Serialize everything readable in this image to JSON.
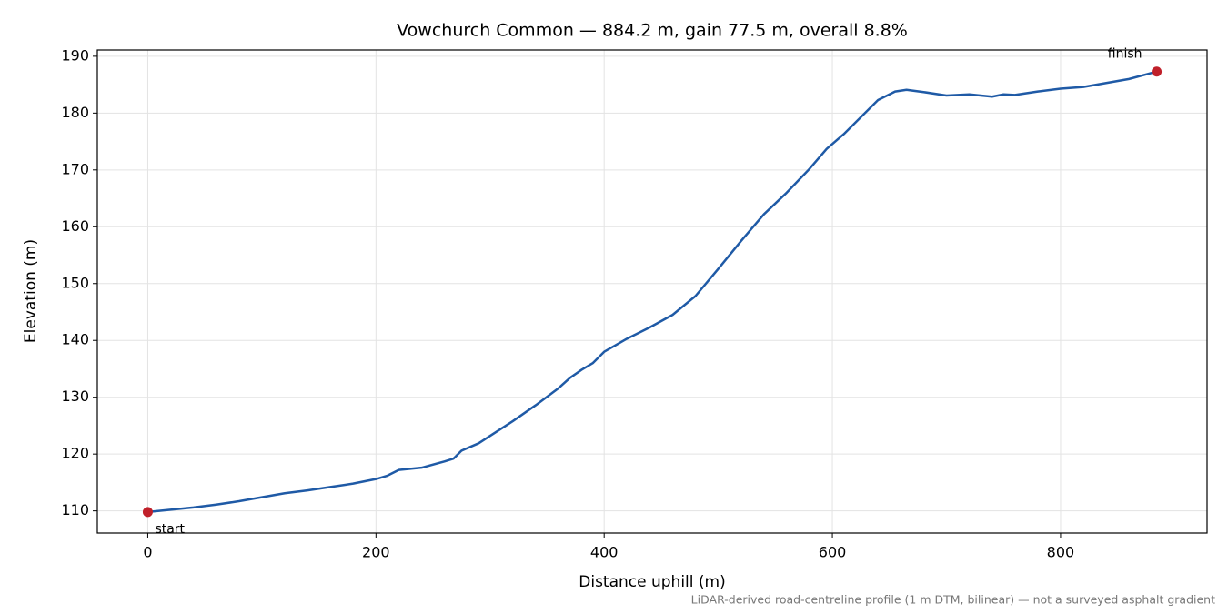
{
  "chart_data": {
    "type": "line",
    "title": "Vowchurch Common — 884.2 m, gain 77.5 m, overall 8.8%",
    "x_label": "Distance uphill (m)",
    "y_label": "Elevation (m)",
    "footnote": "LiDAR-derived road-centreline profile (1 m DTM, bilinear) — not a surveyed asphalt gradient",
    "start_label": "start",
    "finish_label": "finish",
    "x": [
      0,
      20,
      40,
      60,
      80,
      100,
      120,
      140,
      160,
      180,
      200,
      210,
      220,
      240,
      260,
      268,
      275,
      290,
      300,
      320,
      340,
      360,
      370,
      380,
      390,
      400,
      420,
      440,
      460,
      480,
      500,
      520,
      540,
      560,
      580,
      595,
      610,
      625,
      640,
      655,
      665,
      680,
      700,
      720,
      740,
      750,
      760,
      780,
      800,
      820,
      840,
      860,
      884.2
    ],
    "series": [
      {
        "name": "Elevation",
        "color": "#1f5aa6",
        "values": [
          109.8,
          110.2,
          110.6,
          111.1,
          111.7,
          112.4,
          113.1,
          113.6,
          114.2,
          114.8,
          115.6,
          116.2,
          117.2,
          117.6,
          118.7,
          119.2,
          120.6,
          121.9,
          123.2,
          125.8,
          128.6,
          131.6,
          133.4,
          134.8,
          136.0,
          138.0,
          140.3,
          142.3,
          144.5,
          147.8,
          152.6,
          157.5,
          162.2,
          166.0,
          170.2,
          173.7,
          176.3,
          179.3,
          182.3,
          183.8,
          184.1,
          183.7,
          183.1,
          183.3,
          182.9,
          183.3,
          183.2,
          183.8,
          184.3,
          184.6,
          185.3,
          186.0,
          187.3
        ]
      }
    ],
    "marker_color": "#c0202a",
    "xlim": [
      -44.2,
      928.4
    ],
    "ylim": [
      106.1,
      191.1
    ],
    "xticks": [
      0,
      200,
      400,
      600,
      800
    ],
    "yticks": [
      110,
      120,
      130,
      140,
      150,
      160,
      170,
      180,
      190
    ],
    "grid": true
  }
}
